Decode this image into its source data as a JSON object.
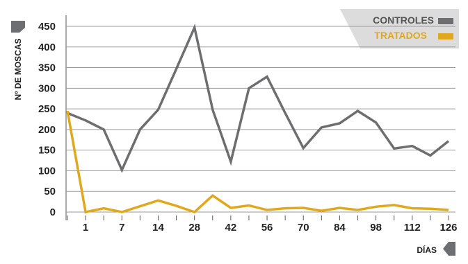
{
  "chart_data": {
    "type": "line",
    "ylabel": "Nº DE MOSCAS",
    "xlabel": "DÍAS",
    "ylim": [
      0,
      450
    ],
    "yticks": [
      0,
      50,
      100,
      150,
      200,
      250,
      300,
      350,
      400,
      450
    ],
    "grid": true,
    "legend_position": "top-right",
    "x_labels": [
      "1",
      "7",
      "14",
      "28",
      "42",
      "56",
      "70",
      "84",
      "98",
      "112",
      "126"
    ],
    "series": [
      {
        "name": "CONTROLES",
        "color": "#6d6e71",
        "values": [
          240,
          222,
          200,
          102,
          200,
          248,
          347,
          447,
          248,
          122,
          300,
          328,
          240,
          155,
          205,
          215,
          245,
          217,
          154,
          160,
          137,
          172
        ]
      },
      {
        "name": "TRATADOS",
        "color": "#e0a81c",
        "values": [
          245,
          0,
          9,
          0,
          14,
          28,
          15,
          0,
          40,
          10,
          16,
          5,
          9,
          10,
          3,
          10,
          5,
          13,
          17,
          9,
          8,
          5
        ]
      }
    ]
  }
}
